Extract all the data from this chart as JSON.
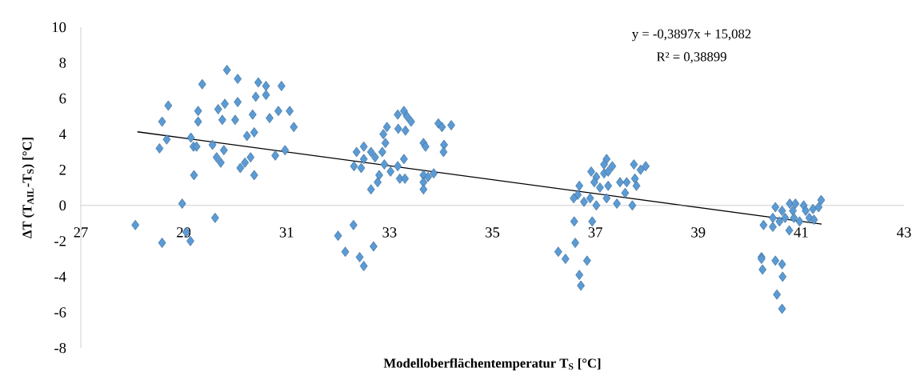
{
  "chart_data": {
    "type": "scatter",
    "xlabel": "Modelloberflächentemperatur T$_{S}$ [°C]",
    "ylabel": "ΔT (T$_{AIL}$-T$_{S}$) [°C]",
    "annotations": [
      "y = -0,3897x + 15,082",
      "R² = 0,38899"
    ],
    "xlim": [
      27,
      43
    ],
    "ylim": [
      -8,
      10
    ],
    "xticks": [
      27,
      29,
      31,
      33,
      35,
      37,
      39,
      41,
      43
    ],
    "yticks": [
      -8,
      -6,
      -4,
      -2,
      0,
      2,
      4,
      6,
      8,
      10
    ],
    "marker": "diamond",
    "series": [
      {
        "type": "scatter",
        "color": "#5b9bd5",
        "x": [
          29.84,
          30.05,
          29.36,
          30.45,
          30.6,
          30.9,
          30.4,
          30.6,
          28.7,
          29.28,
          29.67,
          29.8,
          30.05,
          30.84,
          31.06,
          28.58,
          29.28,
          29.75,
          30.0,
          30.34,
          30.67,
          31.14,
          28.67,
          28.53,
          29.14,
          29.19,
          29.25,
          29.56,
          29.78,
          29.64,
          29.72,
          30.23,
          30.37,
          30.3,
          30.19,
          30.1,
          30.37,
          30.78,
          30.97,
          29.2,
          28.97,
          29.61,
          28.06,
          28.58,
          29.05,
          29.13,
          33.28,
          33.16,
          33.34,
          33.42,
          32.95,
          33.17,
          33.31,
          33.95,
          34.02,
          34.2,
          32.88,
          32.92,
          33.66,
          33.7,
          34.06,
          34.05,
          32.5,
          32.36,
          32.64,
          32.72,
          32.86,
          32.5,
          32.31,
          32.45,
          32.9,
          33.02,
          33.16,
          33.28,
          32.8,
          32.77,
          32.64,
          33.2,
          33.3,
          33.66,
          33.86,
          33.66,
          33.66,
          33.75,
          32.3,
          32.0,
          32.14,
          32.42,
          32.5,
          32.69,
          37.22,
          37.33,
          37.17,
          36.92,
          37.02,
          36.98,
          37.17,
          37.25,
          37.75,
          37.88,
          37.98,
          37.77,
          37.8,
          37.61,
          37.48,
          37.25,
          37.09,
          36.69,
          37.58,
          36.66,
          36.58,
          36.78,
          37.02,
          37.22,
          37.42,
          37.72,
          36.9,
          36.59,
          36.94,
          36.61,
          36.28,
          36.42,
          36.84,
          36.69,
          36.72,
          40.5,
          40.63,
          40.78,
          40.89,
          41.05,
          41.09,
          41.23,
          41.39,
          41.34,
          40.84,
          40.27,
          40.45,
          40.58,
          40.69,
          40.86,
          40.77,
          40.97,
          41.16,
          41.25,
          40.45,
          40.23,
          40.23,
          40.25,
          40.5,
          40.63,
          40.64,
          40.53,
          40.63
        ],
        "values": [
          7.6,
          7.1,
          6.8,
          6.9,
          6.7,
          6.7,
          6.1,
          6.2,
          5.6,
          5.3,
          5.4,
          5.7,
          5.8,
          5.3,
          5.3,
          4.7,
          4.7,
          4.8,
          4.8,
          5.1,
          4.9,
          4.4,
          3.7,
          3.2,
          3.8,
          3.3,
          3.3,
          3.4,
          3.1,
          2.7,
          2.4,
          3.9,
          4.1,
          2.7,
          2.4,
          2.1,
          1.7,
          2.8,
          3.1,
          1.7,
          0.1,
          -0.7,
          -1.1,
          -2.1,
          -1.5,
          -2.0,
          5.3,
          5.1,
          5.0,
          4.7,
          4.4,
          4.3,
          4.2,
          4.6,
          4.4,
          4.5,
          4.0,
          3.5,
          3.5,
          3.3,
          3.4,
          3.0,
          3.3,
          3.0,
          3.0,
          2.7,
          3.0,
          2.6,
          2.2,
          2.1,
          2.3,
          1.9,
          2.2,
          2.6,
          1.7,
          1.3,
          0.9,
          1.5,
          1.5,
          1.7,
          1.8,
          1.3,
          0.9,
          1.6,
          -1.1,
          -1.7,
          -2.6,
          -2.9,
          -3.4,
          -2.3,
          2.6,
          2.2,
          2.3,
          1.9,
          1.6,
          1.3,
          1.8,
          1.9,
          2.3,
          2.0,
          2.2,
          1.5,
          1.1,
          1.3,
          1.3,
          1.1,
          1.0,
          1.1,
          0.7,
          0.6,
          0.4,
          0.2,
          0.0,
          0.4,
          0.1,
          0.0,
          0.4,
          -0.9,
          -0.9,
          -2.1,
          -2.6,
          -3.0,
          -3.1,
          -3.9,
          -4.5,
          -0.1,
          -0.3,
          0.1,
          0.1,
          0.0,
          -0.3,
          -0.2,
          0.3,
          -0.1,
          -0.3,
          -1.1,
          -1.2,
          -0.9,
          -0.7,
          -0.7,
          -1.4,
          -0.9,
          -0.7,
          -0.8,
          -0.7,
          -2.9,
          -3.0,
          -3.6,
          -3.1,
          -3.3,
          -4.0,
          -5.0,
          -5.8
        ]
      },
      {
        "type": "line",
        "color": "#000000",
        "marker": "none",
        "x": [
          28.1,
          41.4
        ],
        "values": [
          4.13,
          -1.05
        ]
      }
    ]
  }
}
